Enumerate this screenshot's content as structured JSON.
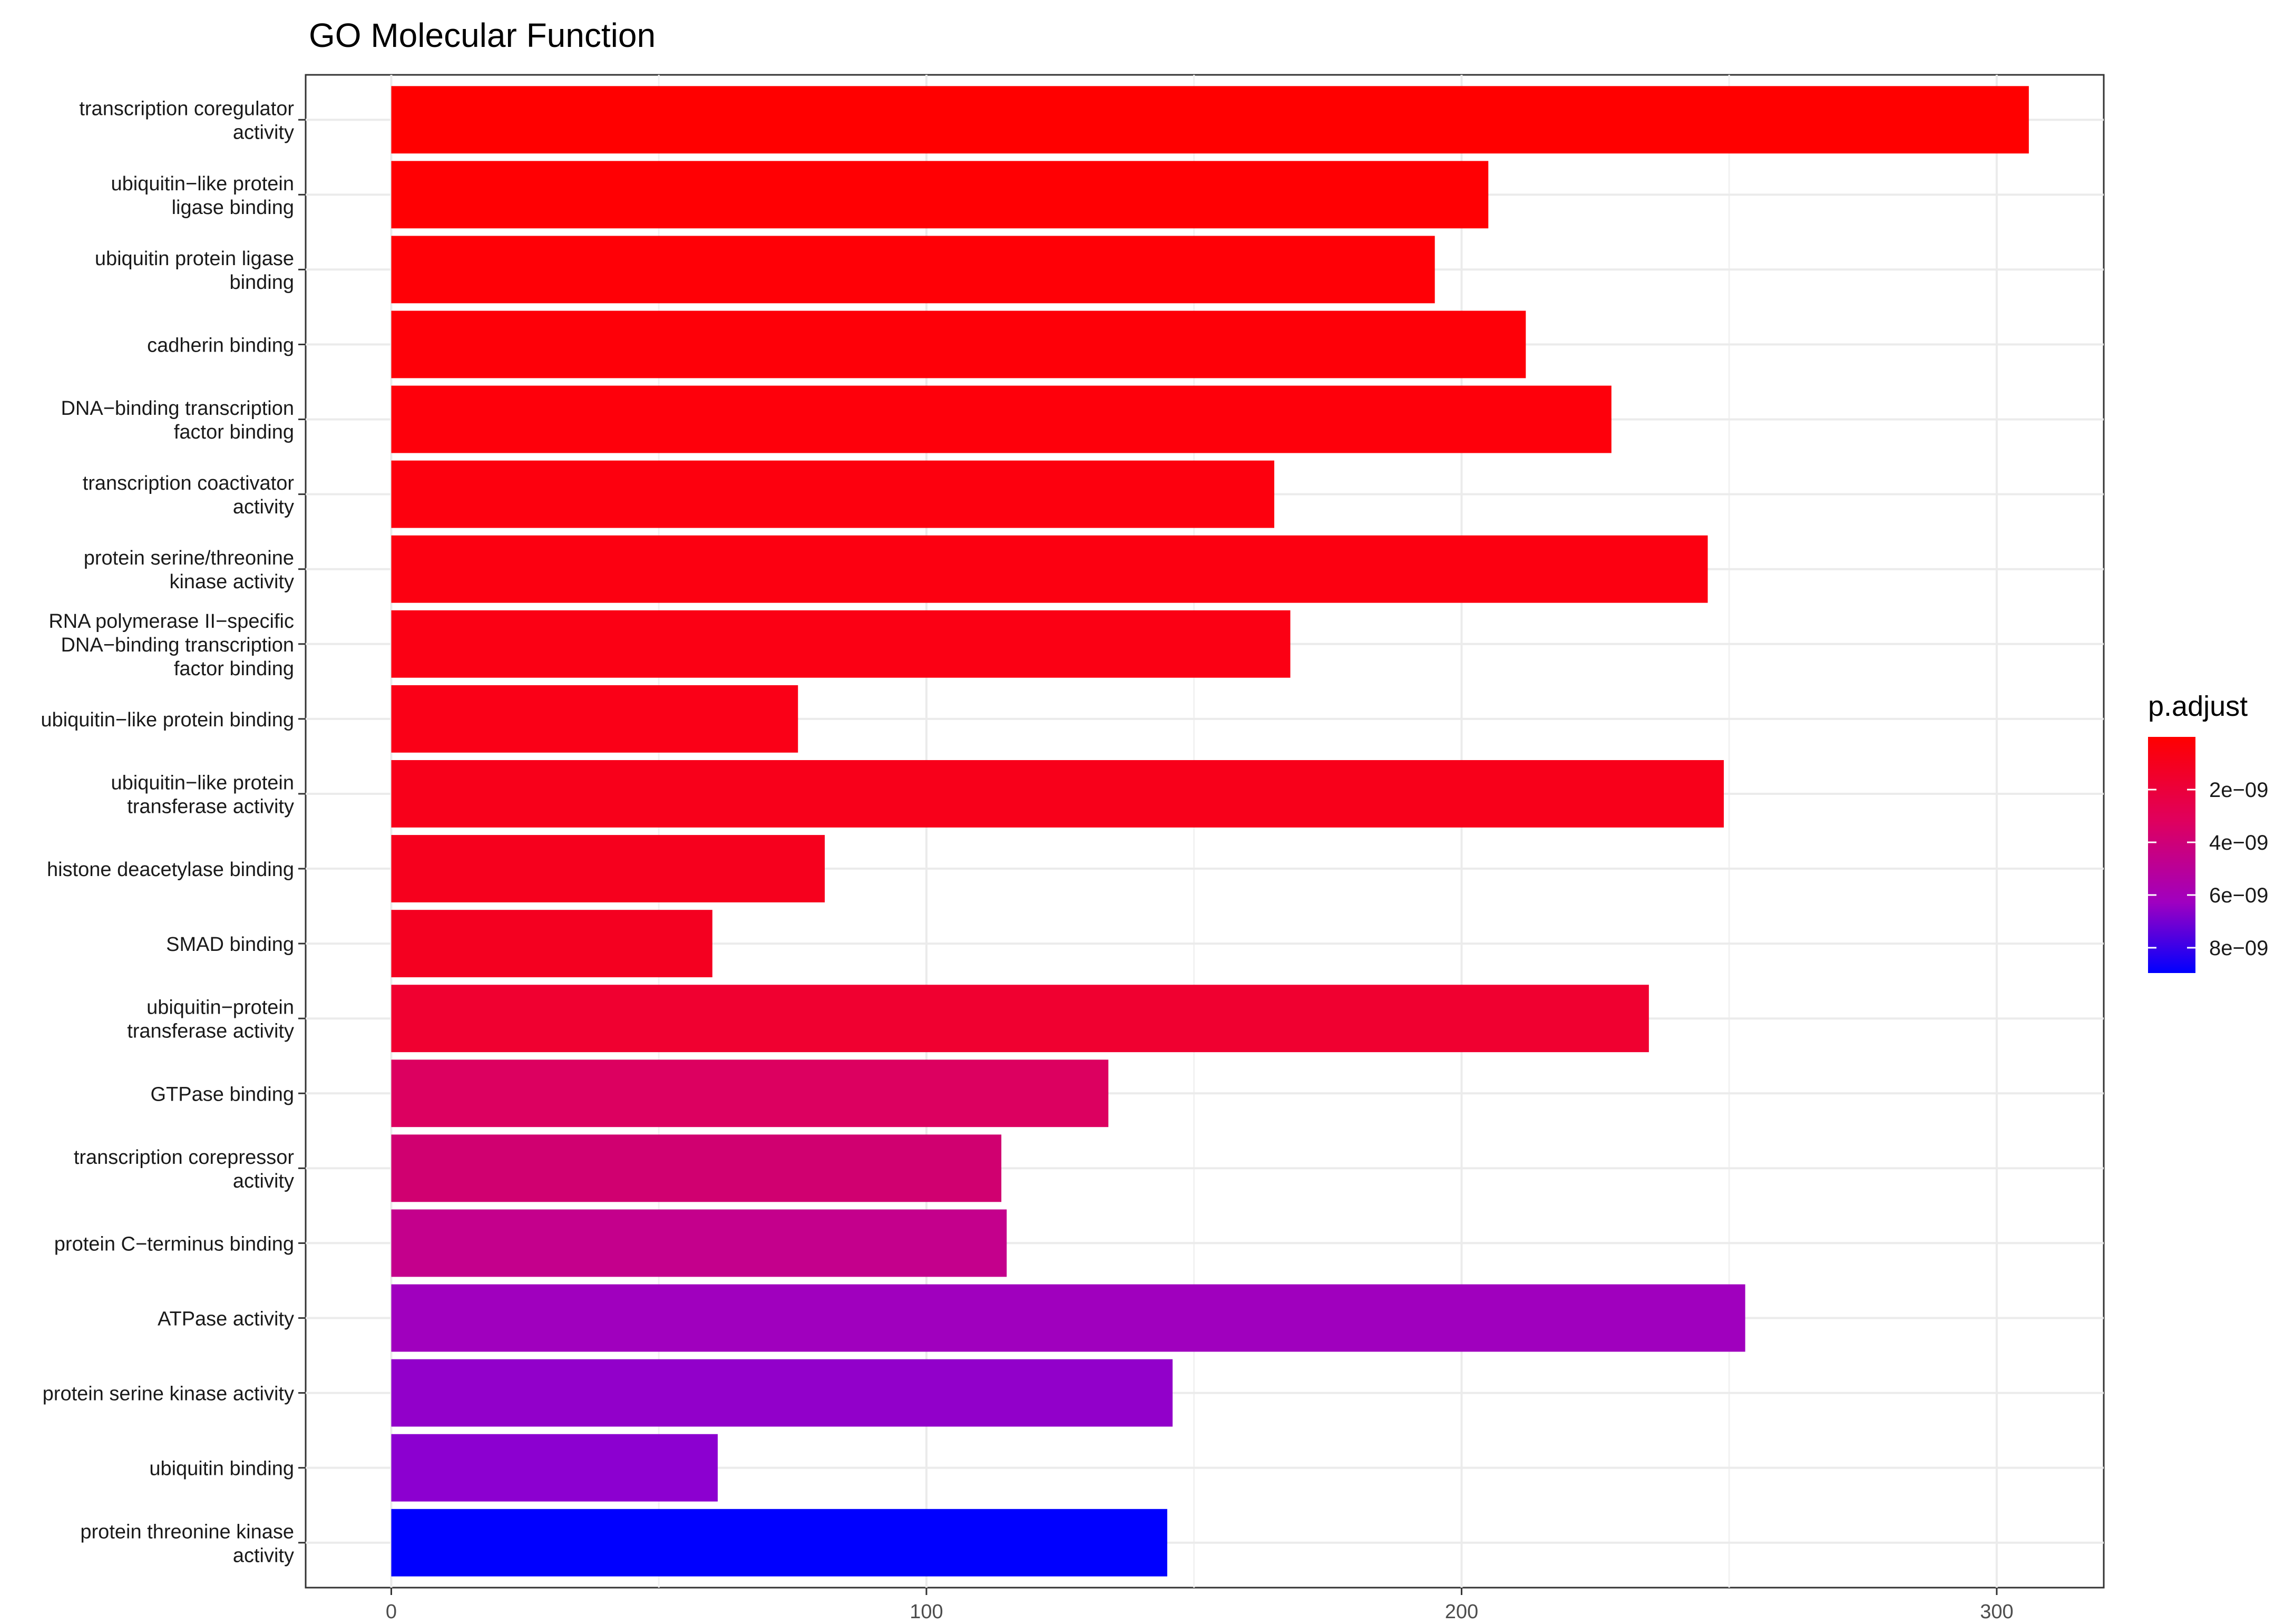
{
  "chart_data": {
    "type": "bar",
    "orientation": "horizontal",
    "title": "GO Molecular Function",
    "xlabel": "",
    "ylabel": "",
    "xlim": [
      -16,
      320
    ],
    "xticks": [
      0,
      100,
      200,
      300
    ],
    "xtick_labels": [
      "0",
      "100",
      "200",
      "300"
    ],
    "grid": true,
    "categories": [
      [
        "transcription coregulator",
        "activity"
      ],
      [
        "ubiquitin−like protein",
        "ligase binding"
      ],
      [
        "ubiquitin protein ligase",
        "binding"
      ],
      [
        "cadherin binding"
      ],
      [
        "DNA−binding transcription",
        "factor binding"
      ],
      [
        "transcription coactivator",
        "activity"
      ],
      [
        "protein serine/threonine",
        "kinase activity"
      ],
      [
        "RNA polymerase II−specific",
        "DNA−binding transcription",
        "factor binding"
      ],
      [
        "ubiquitin−like protein binding"
      ],
      [
        "ubiquitin−like protein",
        "transferase activity"
      ],
      [
        "histone deacetylase binding"
      ],
      [
        "SMAD binding"
      ],
      [
        "ubiquitin−protein",
        "transferase activity"
      ],
      [
        "GTPase binding"
      ],
      [
        "transcription corepressor",
        "activity"
      ],
      [
        "protein C−terminus binding"
      ],
      [
        "ATPase activity"
      ],
      [
        "protein serine kinase activity"
      ],
      [
        "ubiquitin binding"
      ],
      [
        "protein threonine kinase",
        "activity"
      ]
    ],
    "values": [
      306,
      205,
      195,
      212,
      228,
      165,
      246,
      168,
      76,
      249,
      81,
      60,
      235,
      134,
      114,
      115,
      253,
      146,
      61,
      145
    ],
    "colors": [
      "#ff0000",
      "#ff0003",
      "#ff0006",
      "#fe0008",
      "#fe000b",
      "#fd000e",
      "#fc0011",
      "#fb0014",
      "#fa0017",
      "#f8001a",
      "#f6001d",
      "#f40020",
      "#f00030",
      "#dc0060",
      "#d00070",
      "#c4008c",
      "#a000be",
      "#9200ca",
      "#8c00d0",
      "#0000ff"
    ],
    "legend": {
      "title": "p.adjust",
      "position": "right",
      "labels": [
        "2e−09",
        "4e−09",
        "6e−09",
        "8e−09"
      ],
      "color_top": "#ff0000",
      "color_bottom": "#0000ff"
    }
  }
}
